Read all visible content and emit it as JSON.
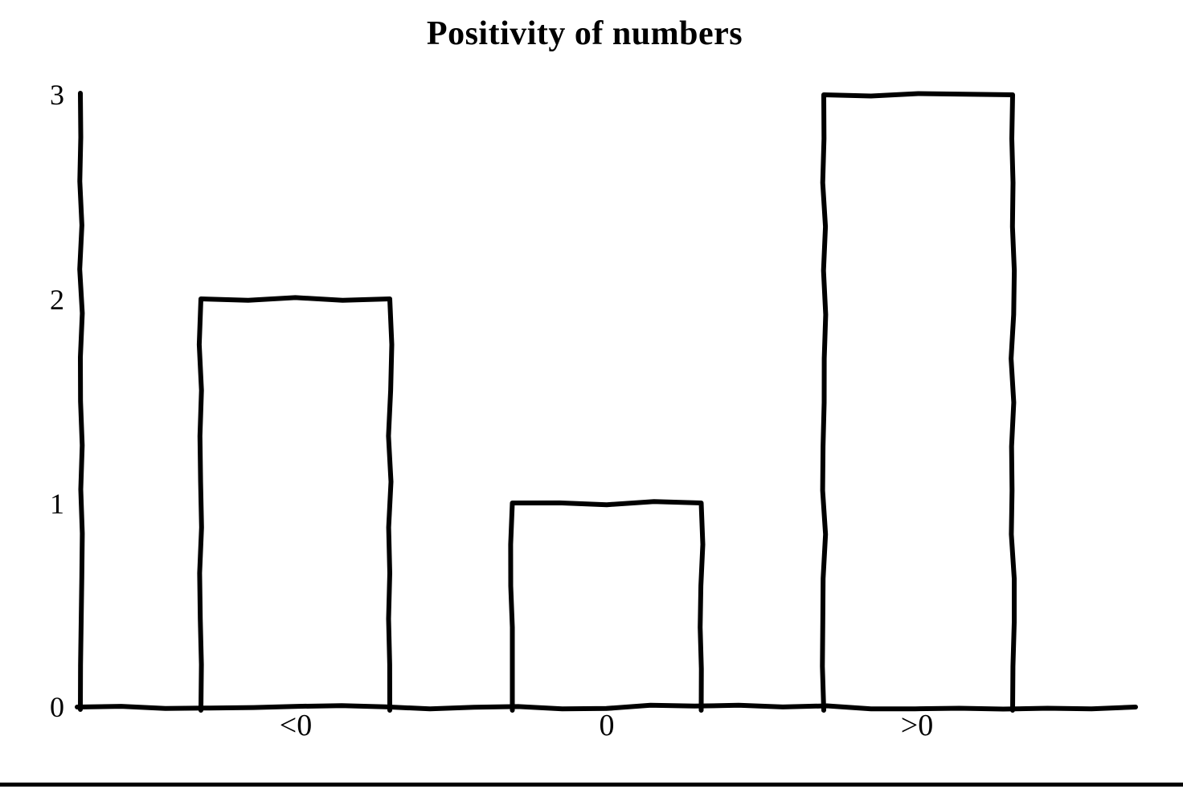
{
  "chart_data": {
    "type": "bar",
    "title": "Positivity of numbers",
    "categories": [
      "<0",
      "0",
      ">0"
    ],
    "values": [
      2,
      1,
      3
    ],
    "yticks": [
      "0",
      "1",
      "2",
      "3"
    ],
    "ylim": [
      0,
      3
    ],
    "xlabel": "",
    "ylabel": "",
    "grid": false,
    "legend": false,
    "colors": {
      "line": "#000000",
      "bar_fill": "#ffffff",
      "background": "#ffffff"
    }
  }
}
